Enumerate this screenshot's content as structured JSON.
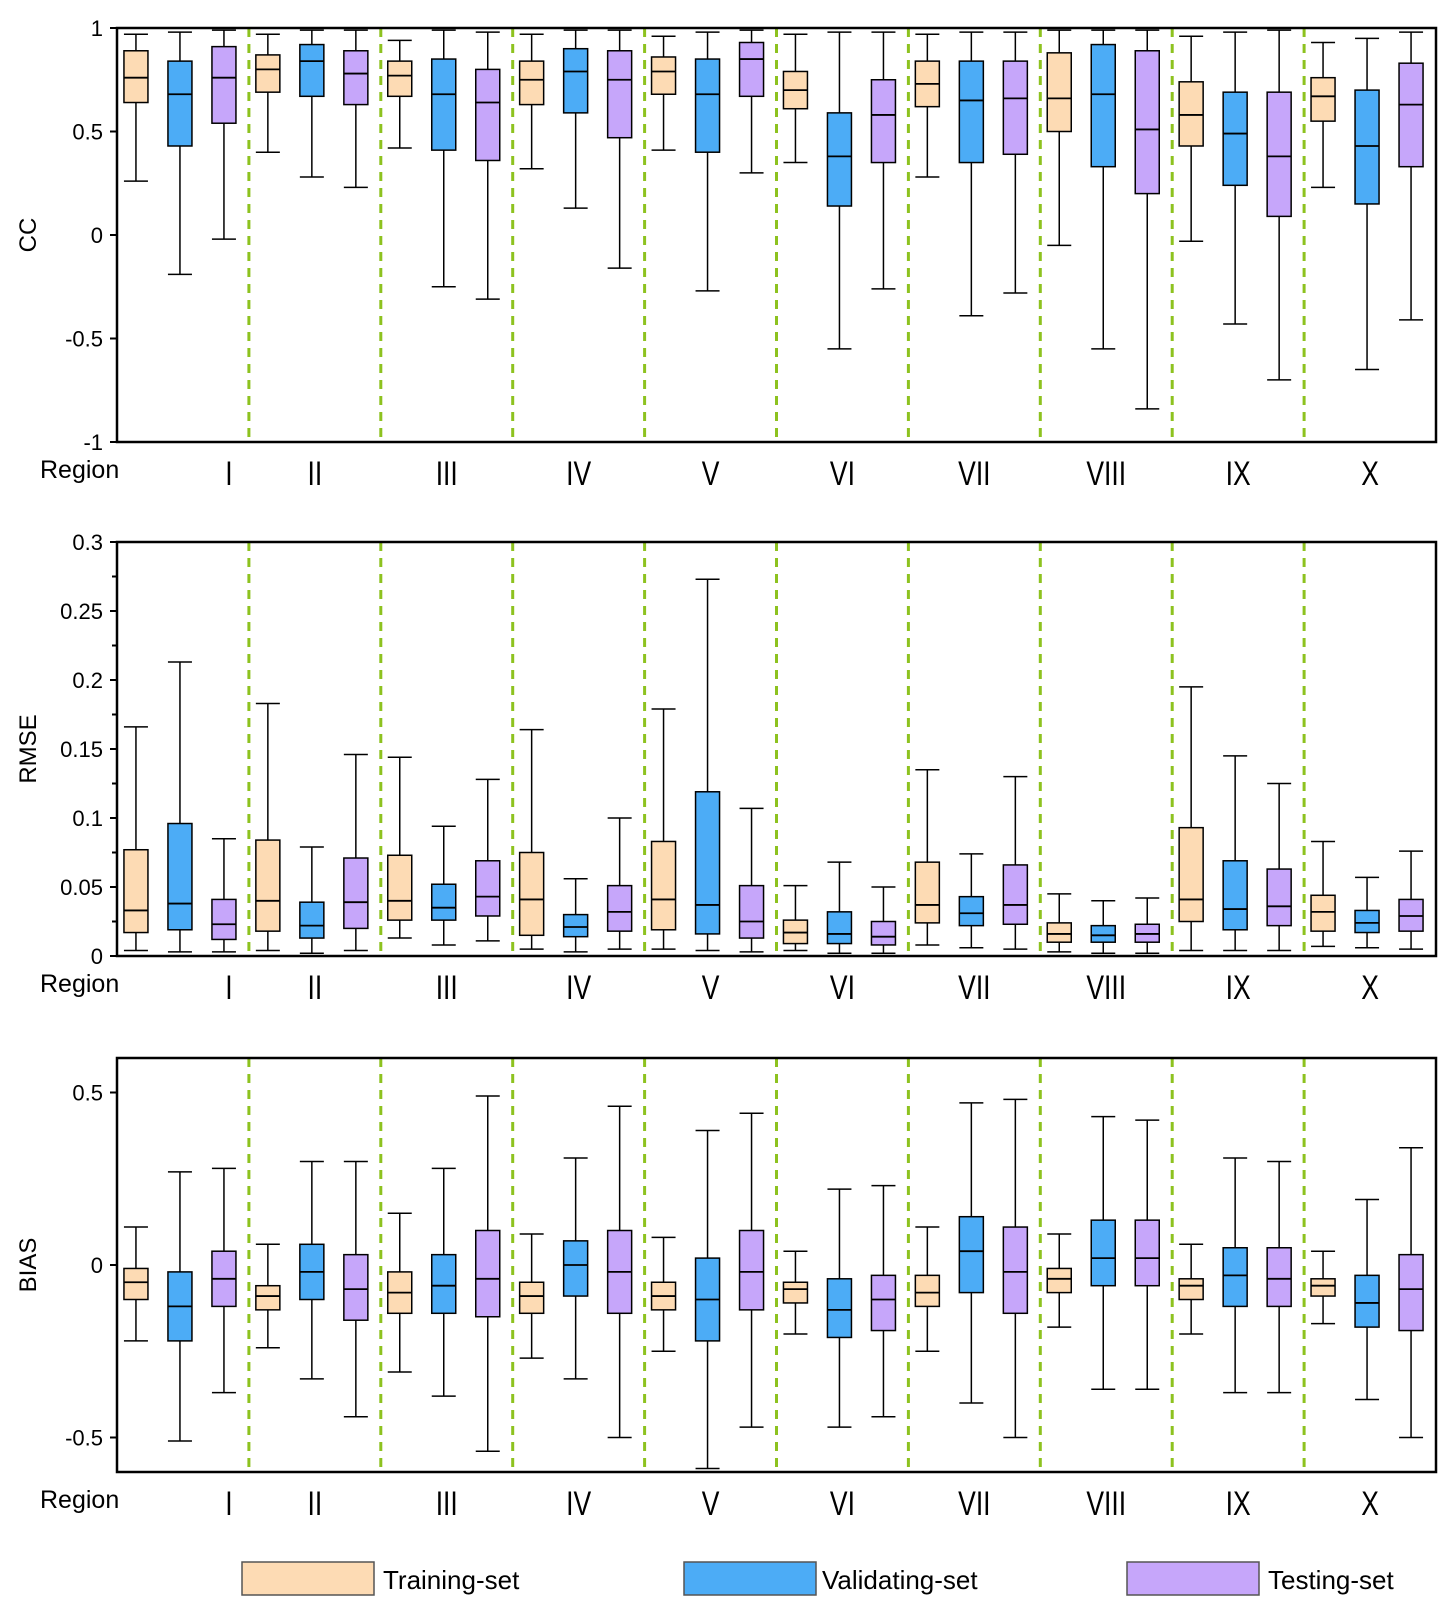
{
  "colors": {
    "training": "#FDDBB4",
    "validating": "#4CACF6",
    "testing": "#C6A6FA",
    "divider": "#8DC21F",
    "frame": "#000000"
  },
  "legend": [
    {
      "key": "training",
      "label": "Training-set"
    },
    {
      "key": "validating",
      "label": "Validating-set"
    },
    {
      "key": "testing",
      "label": "Testing-set"
    }
  ],
  "chart_data": [
    {
      "type": "boxplot",
      "ylabel": "CC",
      "xlabel": "Region",
      "ylim": [
        -1,
        1
      ],
      "yticks": [
        -1,
        -0.5,
        0,
        0.5,
        1
      ],
      "ytick_labels": [
        "-1",
        "-0.5",
        "0",
        "0.5",
        "1"
      ],
      "minor_ticks": false,
      "categories": [
        "I",
        "II",
        "III",
        "IV",
        "V",
        "VI",
        "VII",
        "VIII",
        "IX",
        "X"
      ],
      "series": [
        {
          "name": "Training-set",
          "key": "training",
          "boxes": [
            [
              0.26,
              0.64,
              0.76,
              0.89,
              0.97
            ],
            [
              0.4,
              0.69,
              0.8,
              0.87,
              0.97
            ],
            [
              0.42,
              0.67,
              0.77,
              0.84,
              0.94
            ],
            [
              0.32,
              0.63,
              0.75,
              0.84,
              0.97
            ],
            [
              0.41,
              0.68,
              0.79,
              0.86,
              0.96
            ],
            [
              0.35,
              0.61,
              0.7,
              0.79,
              0.97
            ],
            [
              0.28,
              0.62,
              0.73,
              0.84,
              0.97
            ],
            [
              -0.05,
              0.5,
              0.66,
              0.88,
              0.99
            ],
            [
              -0.03,
              0.43,
              0.58,
              0.74,
              0.96
            ],
            [
              0.23,
              0.55,
              0.67,
              0.76,
              0.93
            ]
          ]
        },
        {
          "name": "Validating-set",
          "key": "validating",
          "boxes": [
            [
              -0.19,
              0.43,
              0.68,
              0.84,
              0.98
            ],
            [
              0.28,
              0.67,
              0.84,
              0.92,
              0.99
            ],
            [
              -0.25,
              0.41,
              0.68,
              0.85,
              0.99
            ],
            [
              0.13,
              0.59,
              0.79,
              0.9,
              0.99
            ],
            [
              -0.27,
              0.4,
              0.68,
              0.85,
              0.98
            ],
            [
              -0.55,
              0.14,
              0.38,
              0.59,
              0.98
            ],
            [
              -0.39,
              0.35,
              0.65,
              0.84,
              0.98
            ],
            [
              -0.55,
              0.33,
              0.68,
              0.92,
              0.99
            ],
            [
              -0.43,
              0.24,
              0.49,
              0.69,
              0.98
            ],
            [
              -0.65,
              0.15,
              0.43,
              0.7,
              0.95
            ]
          ]
        },
        {
          "name": "Testing-set",
          "key": "testing",
          "boxes": [
            [
              -0.02,
              0.54,
              0.76,
              0.91,
              0.99
            ],
            [
              0.23,
              0.63,
              0.78,
              0.89,
              0.99
            ],
            [
              -0.31,
              0.36,
              0.64,
              0.8,
              0.98
            ],
            [
              -0.16,
              0.47,
              0.75,
              0.89,
              0.99
            ],
            [
              0.3,
              0.67,
              0.85,
              0.93,
              0.99
            ],
            [
              -0.26,
              0.35,
              0.58,
              0.75,
              0.98
            ],
            [
              -0.28,
              0.39,
              0.66,
              0.84,
              0.98
            ],
            [
              -0.84,
              0.2,
              0.51,
              0.89,
              0.99
            ],
            [
              -0.7,
              0.09,
              0.38,
              0.69,
              0.99
            ],
            [
              -0.41,
              0.33,
              0.63,
              0.83,
              0.98
            ]
          ]
        }
      ]
    },
    {
      "type": "boxplot",
      "ylabel": "RMSE",
      "xlabel": "Region",
      "ylim": [
        0,
        0.3
      ],
      "yticks": [
        0,
        0.05,
        0.1,
        0.15,
        0.2,
        0.25,
        0.3
      ],
      "ytick_labels": [
        "0",
        "0.05",
        "0.1",
        "0.15",
        "0.2",
        "0.25",
        "0.3"
      ],
      "minor_ticks": true,
      "categories": [
        "I",
        "II",
        "III",
        "IV",
        "V",
        "VI",
        "VII",
        "VIII",
        "IX",
        "X"
      ],
      "series": [
        {
          "name": "Training-set",
          "key": "training",
          "boxes": [
            [
              0.004,
              0.017,
              0.033,
              0.077,
              0.166
            ],
            [
              0.004,
              0.018,
              0.04,
              0.084,
              0.183
            ],
            [
              0.013,
              0.026,
              0.04,
              0.073,
              0.144
            ],
            [
              0.005,
              0.015,
              0.041,
              0.075,
              0.164
            ],
            [
              0.005,
              0.019,
              0.041,
              0.083,
              0.179
            ],
            [
              0.004,
              0.009,
              0.017,
              0.026,
              0.051
            ],
            [
              0.008,
              0.024,
              0.037,
              0.068,
              0.135
            ],
            [
              0.003,
              0.01,
              0.016,
              0.024,
              0.045
            ],
            [
              0.004,
              0.025,
              0.041,
              0.093,
              0.195
            ],
            [
              0.007,
              0.018,
              0.032,
              0.044,
              0.083
            ]
          ]
        },
        {
          "name": "Validating-set",
          "key": "validating",
          "boxes": [
            [
              0.003,
              0.019,
              0.038,
              0.096,
              0.213
            ],
            [
              0.002,
              0.013,
              0.022,
              0.039,
              0.079
            ],
            [
              0.008,
              0.026,
              0.035,
              0.052,
              0.094
            ],
            [
              0.003,
              0.014,
              0.021,
              0.03,
              0.056
            ],
            [
              0.004,
              0.016,
              0.037,
              0.119,
              0.273
            ],
            [
              0.002,
              0.009,
              0.016,
              0.032,
              0.068
            ],
            [
              0.006,
              0.022,
              0.031,
              0.043,
              0.074
            ],
            [
              0.002,
              0.01,
              0.015,
              0.022,
              0.04
            ],
            [
              0.004,
              0.019,
              0.034,
              0.069,
              0.145
            ],
            [
              0.006,
              0.017,
              0.024,
              0.033,
              0.057
            ]
          ]
        },
        {
          "name": "Testing-set",
          "key": "testing",
          "boxes": [
            [
              0.003,
              0.012,
              0.023,
              0.041,
              0.085
            ],
            [
              0.004,
              0.02,
              0.039,
              0.071,
              0.146
            ],
            [
              0.011,
              0.029,
              0.043,
              0.069,
              0.128
            ],
            [
              0.005,
              0.018,
              0.032,
              0.051,
              0.1
            ],
            [
              0.003,
              0.013,
              0.025,
              0.051,
              0.107
            ],
            [
              0.002,
              0.008,
              0.014,
              0.025,
              0.05
            ],
            [
              0.005,
              0.023,
              0.037,
              0.066,
              0.13
            ],
            [
              0.002,
              0.01,
              0.016,
              0.023,
              0.042
            ],
            [
              0.004,
              0.022,
              0.036,
              0.063,
              0.125
            ],
            [
              0.005,
              0.018,
              0.029,
              0.041,
              0.076
            ]
          ]
        }
      ]
    },
    {
      "type": "boxplot",
      "ylabel": "BIAS",
      "xlabel": "Region",
      "ylim": [
        -0.6,
        0.6
      ],
      "yticks": [
        -0.5,
        0,
        0.5
      ],
      "ytick_labels": [
        "-0.5",
        "0",
        "0.5"
      ],
      "minor_ticks": false,
      "categories": [
        "I",
        "II",
        "III",
        "IV",
        "V",
        "VI",
        "VII",
        "VIII",
        "IX",
        "X"
      ],
      "series": [
        {
          "name": "Training-set",
          "key": "training",
          "boxes": [
            [
              -0.22,
              -0.1,
              -0.05,
              -0.01,
              0.11
            ],
            [
              -0.24,
              -0.13,
              -0.09,
              -0.06,
              0.06
            ],
            [
              -0.31,
              -0.14,
              -0.08,
              -0.02,
              0.15
            ],
            [
              -0.27,
              -0.14,
              -0.09,
              -0.05,
              0.09
            ],
            [
              -0.25,
              -0.13,
              -0.09,
              -0.05,
              0.08
            ],
            [
              -0.2,
              -0.11,
              -0.07,
              -0.05,
              0.04
            ],
            [
              -0.25,
              -0.12,
              -0.08,
              -0.03,
              0.11
            ],
            [
              -0.18,
              -0.08,
              -0.04,
              -0.01,
              0.09
            ],
            [
              -0.2,
              -0.1,
              -0.06,
              -0.04,
              0.06
            ],
            [
              -0.17,
              -0.09,
              -0.06,
              -0.04,
              0.04
            ]
          ]
        },
        {
          "name": "Validating-set",
          "key": "validating",
          "boxes": [
            [
              -0.51,
              -0.22,
              -0.12,
              -0.02,
              0.27
            ],
            [
              -0.33,
              -0.1,
              -0.02,
              0.06,
              0.3
            ],
            [
              -0.38,
              -0.14,
              -0.06,
              0.03,
              0.28
            ],
            [
              -0.33,
              -0.09,
              0.0,
              0.07,
              0.31
            ],
            [
              -0.59,
              -0.22,
              -0.1,
              0.02,
              0.39
            ],
            [
              -0.47,
              -0.21,
              -0.13,
              -0.04,
              0.22
            ],
            [
              -0.4,
              -0.08,
              0.04,
              0.14,
              0.47
            ],
            [
              -0.36,
              -0.06,
              0.02,
              0.13,
              0.43
            ],
            [
              -0.37,
              -0.12,
              -0.03,
              0.05,
              0.31
            ],
            [
              -0.39,
              -0.18,
              -0.11,
              -0.03,
              0.19
            ]
          ]
        },
        {
          "name": "Testing-set",
          "key": "testing",
          "boxes": [
            [
              -0.37,
              -0.12,
              -0.04,
              0.04,
              0.28
            ],
            [
              -0.44,
              -0.16,
              -0.07,
              0.03,
              0.3
            ],
            [
              -0.54,
              -0.15,
              -0.04,
              0.1,
              0.49
            ],
            [
              -0.5,
              -0.14,
              -0.02,
              0.1,
              0.46
            ],
            [
              -0.47,
              -0.13,
              -0.02,
              0.1,
              0.44
            ],
            [
              -0.44,
              -0.19,
              -0.1,
              -0.03,
              0.23
            ],
            [
              -0.5,
              -0.14,
              -0.02,
              0.11,
              0.48
            ],
            [
              -0.36,
              -0.06,
              0.02,
              0.13,
              0.42
            ],
            [
              -0.37,
              -0.12,
              -0.04,
              0.05,
              0.3
            ],
            [
              -0.5,
              -0.19,
              -0.07,
              0.03,
              0.34
            ]
          ]
        }
      ]
    }
  ]
}
